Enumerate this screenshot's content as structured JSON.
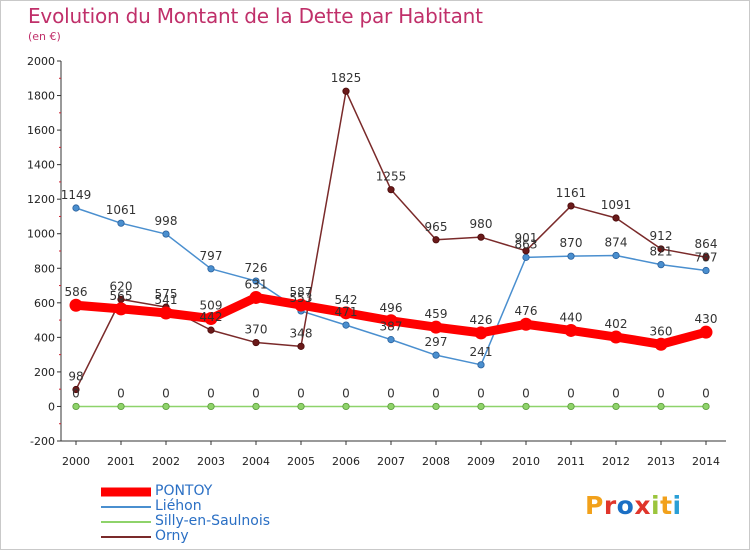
{
  "title": "Evolution du Montant de la Dette par Habitant",
  "subtitle": "(en €)",
  "logo": {
    "text": "Proxiti",
    "colors": [
      "#f2a11b",
      "#e0352b",
      "#1b6fc4",
      "#e0352b",
      "#9bc53d",
      "#f2a11b",
      "#2a9fd6"
    ]
  },
  "chart_data": {
    "type": "line",
    "x": [
      "2000",
      "2001",
      "2002",
      "2003",
      "2004",
      "2005",
      "2006",
      "2007",
      "2008",
      "2009",
      "2010",
      "2011",
      "2012",
      "2013",
      "2014"
    ],
    "ylim": [
      -200,
      2000
    ],
    "yticks": [
      "-200",
      "0",
      "200",
      "400",
      "600",
      "800",
      "1000",
      "1200",
      "1400",
      "1600",
      "1800",
      "2000"
    ],
    "grid": false,
    "legend_position": "bottom-left",
    "series": [
      {
        "name": "PONTOY",
        "color": "#ff0000",
        "values": [
          586,
          565,
          541,
          509,
          631,
          587,
          542,
          496,
          459,
          426,
          476,
          440,
          402,
          360,
          430
        ],
        "labels": [
          "586",
          "565",
          "541",
          "509",
          "631",
          "587",
          "542",
          "496",
          "459",
          "426",
          "476",
          "440",
          "402",
          "360",
          "430"
        ]
      },
      {
        "name": "Liéhon",
        "color": "#4a8fcf",
        "values": [
          1149,
          1061,
          998,
          797,
          726,
          553,
          471,
          387,
          297,
          241,
          863,
          870,
          874,
          821,
          787
        ],
        "labels": [
          "1149",
          "1061",
          "998",
          "797",
          "726",
          "553",
          "471",
          "387",
          "297",
          "241",
          "863",
          "870",
          "874",
          "821",
          "787"
        ]
      },
      {
        "name": "Silly-en-Saulnois",
        "color": "#8ed36a",
        "values": [
          0,
          0,
          0,
          0,
          0,
          0,
          0,
          0,
          0,
          0,
          0,
          0,
          0,
          0,
          0
        ],
        "labels": [
          "0",
          "0",
          "0",
          "0",
          "0",
          "0",
          "0",
          "0",
          "0",
          "0",
          "0",
          "0",
          "0",
          "0",
          "0"
        ]
      },
      {
        "name": "Orny",
        "color": "#7a2a2a",
        "values": [
          98,
          620,
          575,
          442,
          370,
          348,
          1825,
          1255,
          965,
          980,
          901,
          1161,
          1091,
          912,
          864
        ],
        "labels": [
          "98",
          "620",
          "575",
          "442",
          "370",
          "348",
          "1825",
          "1255",
          "965",
          "980",
          "901",
          "1161",
          "1091",
          "912",
          "864"
        ]
      }
    ]
  }
}
